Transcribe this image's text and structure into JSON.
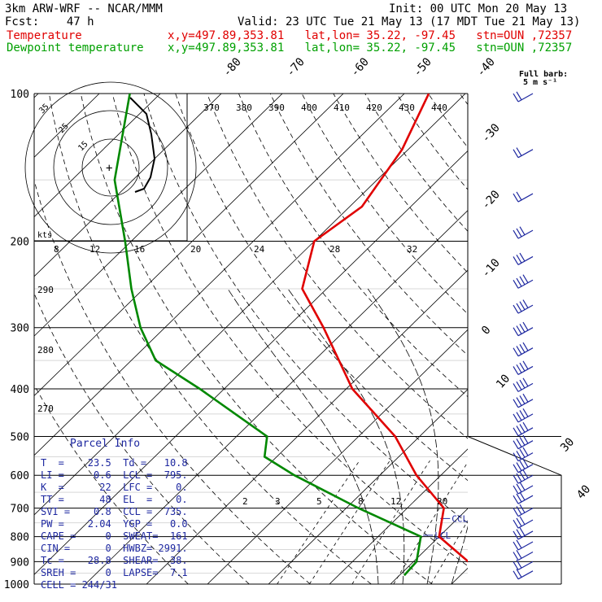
{
  "header": {
    "model": "3km ARW-WRF -- NCAR/MMM",
    "init": "Init: 00 UTC Mon 20 May 13",
    "fcst": "Fcst:    47 h",
    "valid": "Valid: 23 UTC Tue 21 May 13 (17 MDT Tue 21 May 13)",
    "t_label": "Temperature",
    "td_label": "Dewpoint temperature",
    "loc": "x,y=497.89,353.81   lat,lon= 35.22, -97.45   stn=OUN ,72357"
  },
  "wind_key": {
    "line1": "Full barb:",
    "line2": "5 m s⁻¹"
  },
  "hodograph": {
    "units": "kts",
    "ring_labels": [
      "15",
      "25",
      "35"
    ]
  },
  "colors": {
    "temperature": "#e00000",
    "dewpoint": "#008800",
    "wind": "#1e28a0",
    "parcel": "#1e28a0"
  },
  "chart_data": {
    "type": "line",
    "subtype": "skew-T log-p",
    "yscale": "log",
    "ylabel": "",
    "pressure_levels": [
      100,
      200,
      300,
      400,
      500,
      600,
      700,
      800,
      900,
      1000
    ],
    "isotherm_labels": [
      -80,
      -70,
      -60,
      -50,
      -40,
      -30,
      -20,
      -10,
      0,
      10,
      20,
      30,
      40
    ],
    "theta_labels": [
      370,
      380,
      390,
      400,
      410,
      420,
      430,
      440
    ],
    "theta_left_labels": [
      290,
      280,
      270
    ],
    "theta_e_labels": [
      24,
      28,
      32,
      8,
      12,
      16,
      20
    ],
    "mixing_ratio_labels": [
      2,
      3,
      5,
      8,
      12,
      20
    ],
    "series": [
      {
        "name": "Temperature",
        "points": [
          [
            100,
            -66
          ],
          [
            130,
            -61
          ],
          [
            170,
            -58
          ],
          [
            200,
            -60
          ],
          [
            250,
            -54
          ],
          [
            300,
            -44
          ],
          [
            400,
            -29
          ],
          [
            500,
            -14
          ],
          [
            600,
            -4
          ],
          [
            700,
            6
          ],
          [
            800,
            10
          ],
          [
            900,
            19
          ],
          [
            1000,
            26
          ]
        ]
      },
      {
        "name": "Dewpoint temperature",
        "points": [
          [
            100,
            -115
          ],
          [
            150,
            -103
          ],
          [
            200,
            -91
          ],
          [
            250,
            -82
          ],
          [
            300,
            -74
          ],
          [
            350,
            -66
          ],
          [
            400,
            -54
          ],
          [
            500,
            -35
          ],
          [
            550,
            -32
          ],
          [
            600,
            -24
          ],
          [
            700,
            -8
          ],
          [
            800,
            7
          ],
          [
            900,
            10.5
          ],
          [
            960,
            10.8
          ]
        ]
      }
    ],
    "annotations": [
      {
        "text": "CCL",
        "pressure": 735,
        "temp": 8.5
      },
      {
        "text": "LCL",
        "pressure": 795,
        "temp": 8.5
      }
    ],
    "winds": [
      {
        "p": 100,
        "n": 2
      },
      {
        "p": 130,
        "n": 2
      },
      {
        "p": 160,
        "n": 2
      },
      {
        "p": 190,
        "n": 3
      },
      {
        "p": 215,
        "n": 3
      },
      {
        "p": 240,
        "n": 4
      },
      {
        "p": 270,
        "n": 4
      },
      {
        "p": 300,
        "n": 4
      },
      {
        "p": 330,
        "n": 4
      },
      {
        "p": 360,
        "n": 4
      },
      {
        "p": 390,
        "n": 4
      },
      {
        "p": 420,
        "n": 4
      },
      {
        "p": 450,
        "n": 4
      },
      {
        "p": 480,
        "n": 4
      },
      {
        "p": 510,
        "n": 4
      },
      {
        "p": 540,
        "n": 4
      },
      {
        "p": 570,
        "n": 4
      },
      {
        "p": 600,
        "n": 4
      },
      {
        "p": 630,
        "n": 3
      },
      {
        "p": 660,
        "n": 3
      },
      {
        "p": 700,
        "n": 3
      },
      {
        "p": 740,
        "n": 3
      },
      {
        "p": 780,
        "n": 3
      },
      {
        "p": 820,
        "n": 2
      },
      {
        "p": 860,
        "n": 2
      },
      {
        "p": 900,
        "n": 2
      },
      {
        "p": 940,
        "n": 2
      }
    ]
  },
  "parcel": {
    "title": "Parcel Info",
    "lines": [
      "T  =    23.5  Td =   10.8",
      "LI =     0.6  LCL =  795.",
      "K  =      22  LFC =    0.",
      "TT =      48  EL  =    0.",
      "SVI =    0.8  CCL =  735.",
      "PW =    2.04  YGP =   0.0",
      "CAPE =     0  SWEAT=  161",
      "CIN =      0  HWBZ= 2991.",
      "Tc =    28.8  SHEAR=  38.",
      "SREH =     0  LAPSE=  7.1",
      "CELL = 244/31"
    ]
  }
}
